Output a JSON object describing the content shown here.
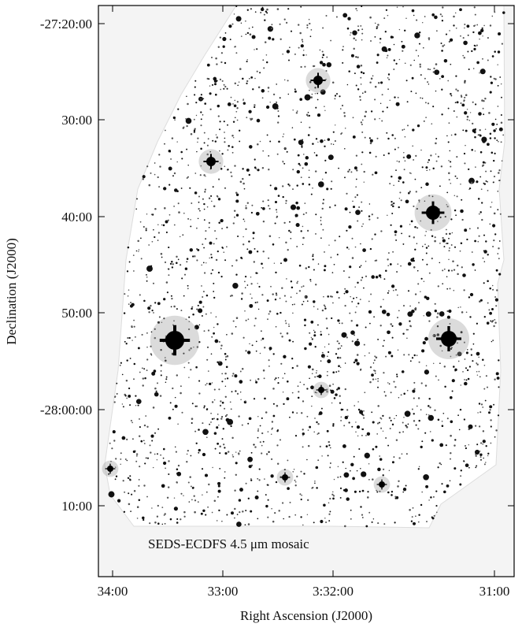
{
  "figure": {
    "annotation": "SEDS-ECDFS 4.5 μm mosaic",
    "x_axis": {
      "title": "Right Ascension (J2000)",
      "tick_labels": [
        "34:00",
        "33:00",
        "3:32:00",
        "31:00"
      ]
    },
    "y_axis": {
      "title": "Declination (J2000)",
      "tick_labels": [
        "-27:20:00",
        "30:00",
        "40:00",
        "50:00",
        "-28:00:00",
        "10:00"
      ]
    }
  }
}
